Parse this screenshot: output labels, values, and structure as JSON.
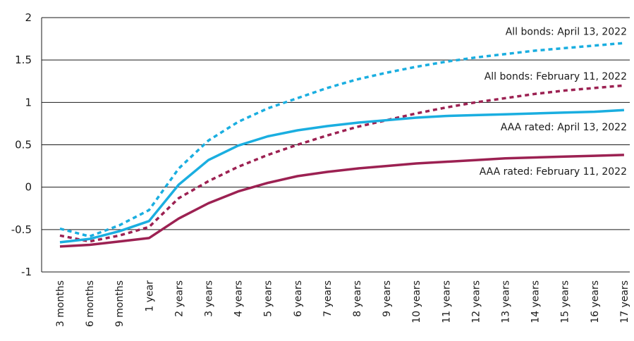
{
  "chart_data": {
    "type": "line",
    "title": "",
    "xlabel": "",
    "ylabel": "",
    "ylim": [
      -1,
      2
    ],
    "yticks": [
      "-1",
      "-0.5",
      "0",
      "0.5",
      "1",
      "1.5",
      "2"
    ],
    "grid": true,
    "categories": [
      "3 months",
      "6 months",
      "9 months",
      "1 year",
      "2 years",
      "3 years",
      "4 years",
      "5 years",
      "6 years",
      "7 years",
      "8 years",
      "9 years",
      "10 years",
      "11 years",
      "12 years",
      "13 years",
      "14 years",
      "15 years",
      "16 years",
      "17 years"
    ],
    "series": [
      {
        "name": "All bonds: April 13, 2022",
        "color": "#1aaee0",
        "style": "dashed",
        "values": [
          -0.49,
          -0.58,
          -0.45,
          -0.27,
          0.22,
          0.55,
          0.77,
          0.93,
          1.05,
          1.17,
          1.27,
          1.35,
          1.42,
          1.48,
          1.53,
          1.57,
          1.61,
          1.64,
          1.67,
          1.7
        ]
      },
      {
        "name": "All bonds: February 11, 2022",
        "color": "#9c2152",
        "style": "dashed",
        "values": [
          -0.57,
          -0.64,
          -0.57,
          -0.47,
          -0.13,
          0.07,
          0.24,
          0.38,
          0.5,
          0.61,
          0.71,
          0.79,
          0.87,
          0.94,
          1.0,
          1.05,
          1.1,
          1.14,
          1.17,
          1.2
        ]
      },
      {
        "name": "AAA rated: April 13, 2022",
        "color": "#1aaee0",
        "style": "solid",
        "values": [
          -0.65,
          -0.61,
          -0.52,
          -0.4,
          0.03,
          0.32,
          0.49,
          0.6,
          0.67,
          0.72,
          0.76,
          0.79,
          0.82,
          0.84,
          0.85,
          0.86,
          0.87,
          0.88,
          0.89,
          0.91
        ]
      },
      {
        "name": "AAA rated: February 11, 2022",
        "color": "#9c2152",
        "style": "solid",
        "values": [
          -0.7,
          -0.68,
          -0.64,
          -0.6,
          -0.37,
          -0.19,
          -0.05,
          0.05,
          0.13,
          0.18,
          0.22,
          0.25,
          0.28,
          0.3,
          0.32,
          0.34,
          0.35,
          0.36,
          0.37,
          0.38
        ]
      }
    ],
    "series_labels": [
      {
        "text": "All bonds: April 13, 2022",
        "anchor_value": 1.84
      },
      {
        "text": "All bonds: February 11, 2022",
        "anchor_value": 1.31
      },
      {
        "text": "AAA rated: April 13, 2022",
        "anchor_value": 0.71
      },
      {
        "text": "AAA rated: February 11, 2022",
        "anchor_value": 0.19
      }
    ]
  }
}
